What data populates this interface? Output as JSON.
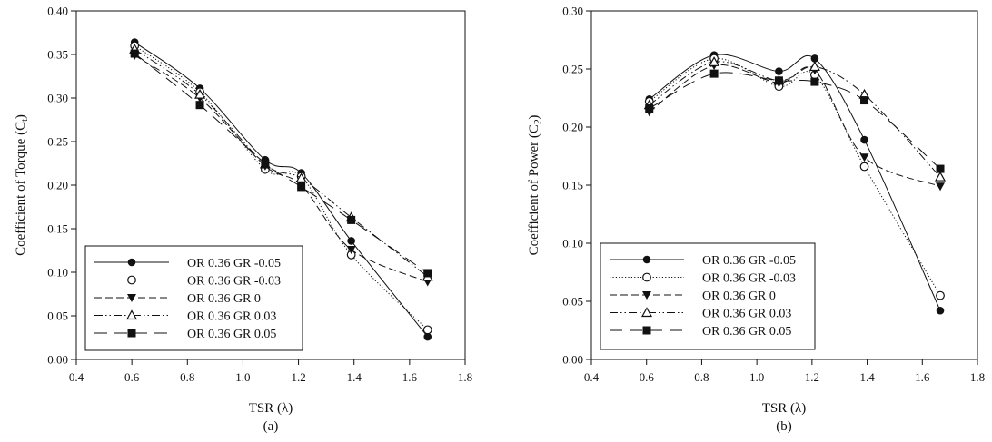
{
  "chart_data": [
    {
      "type": "line",
      "panel_label": "(a)",
      "xlabel": "TSR (λ)",
      "ylabel": "Coefficient of Torque (C",
      "ylabel_sub": "t",
      "ylabel_close": ")",
      "xlim": [
        0.4,
        1.8
      ],
      "ylim": [
        0.0,
        0.4
      ],
      "xticks": [
        "0.4",
        "0.6",
        "0.8",
        "1.0",
        "1.2",
        "1.4",
        "1.6",
        "1.8"
      ],
      "xtick_values": [
        0.4,
        0.6,
        0.8,
        1.0,
        1.2,
        1.4,
        1.6,
        1.8
      ],
      "yticks": [
        "0.00",
        "0.05",
        "0.10",
        "0.15",
        "0.20",
        "0.25",
        "0.30",
        "0.35",
        "0.40"
      ],
      "ytick_values": [
        0.0,
        0.05,
        0.1,
        0.15,
        0.2,
        0.25,
        0.3,
        0.35,
        0.4
      ],
      "legend_position": "bottom-left",
      "x": [
        0.61,
        0.845,
        1.08,
        1.21,
        1.39,
        1.665
      ],
      "series": [
        {
          "name": "OR 0.36 GR -0.05",
          "marker": "filled-circle",
          "line": "solid",
          "values": [
            0.364,
            0.311,
            0.229,
            0.214,
            0.136,
            0.026
          ]
        },
        {
          "name": "OR 0.36 GR -0.03",
          "marker": "open-circle",
          "line": "dotted",
          "values": [
            0.36,
            0.307,
            0.218,
            0.21,
            0.12,
            0.034
          ]
        },
        {
          "name": "OR 0.36 GR 0",
          "marker": "filled-triangle-down",
          "line": "dashed",
          "values": [
            0.349,
            0.3,
            0.222,
            0.2,
            0.126,
            0.089
          ]
        },
        {
          "name": "OR 0.36 GR 0.03",
          "marker": "open-triangle-up",
          "line": "dash-dot-dot",
          "values": [
            0.356,
            0.304,
            0.224,
            0.208,
            0.163,
            0.095
          ]
        },
        {
          "name": "OR 0.36 GR 0.05",
          "marker": "filled-square",
          "line": "long-dash",
          "values": [
            0.351,
            0.292,
            0.225,
            0.198,
            0.16,
            0.099
          ]
        }
      ]
    },
    {
      "type": "line",
      "panel_label": "(b)",
      "xlabel": "TSR (λ)",
      "ylabel": "Coefficient of Power (C",
      "ylabel_sub": "P",
      "ylabel_close": ")",
      "xlim": [
        0.4,
        1.8
      ],
      "ylim": [
        0.0,
        0.3
      ],
      "xticks": [
        "0.4",
        "0.6",
        "0.8",
        "1.0",
        "1.2",
        "1.4",
        "1.6",
        "1.8"
      ],
      "xtick_values": [
        0.4,
        0.6,
        0.8,
        1.0,
        1.2,
        1.4,
        1.6,
        1.8
      ],
      "yticks": [
        "0.00",
        "0.05",
        "0.10",
        "0.15",
        "0.20",
        "0.25",
        "0.30"
      ],
      "ytick_values": [
        0.0,
        0.05,
        0.1,
        0.15,
        0.2,
        0.25,
        0.3
      ],
      "legend_position": "bottom-left",
      "x": [
        0.61,
        0.845,
        1.08,
        1.21,
        1.39,
        1.665
      ],
      "series": [
        {
          "name": "OR 0.36 GR -0.05",
          "marker": "filled-circle",
          "line": "solid",
          "values": [
            0.224,
            0.262,
            0.248,
            0.259,
            0.189,
            0.042
          ]
        },
        {
          "name": "OR 0.36 GR -0.03",
          "marker": "open-circle",
          "line": "dotted",
          "values": [
            0.222,
            0.259,
            0.235,
            0.245,
            0.166,
            0.055
          ]
        },
        {
          "name": "OR 0.36 GR 0",
          "marker": "filled-triangle-down",
          "line": "dashed",
          "values": [
            0.213,
            0.253,
            0.238,
            0.249,
            0.174,
            0.149
          ]
        },
        {
          "name": "OR 0.36 GR 0.03",
          "marker": "open-triangle-up",
          "line": "dash-dot-dot",
          "values": [
            0.219,
            0.256,
            0.24,
            0.252,
            0.228,
            0.157
          ]
        },
        {
          "name": "OR 0.36 GR 0.05",
          "marker": "filled-square",
          "line": "long-dash",
          "values": [
            0.216,
            0.246,
            0.24,
            0.239,
            0.223,
            0.164
          ]
        }
      ]
    }
  ],
  "colors": {
    "ink": "#111111",
    "background": "#ffffff"
  }
}
